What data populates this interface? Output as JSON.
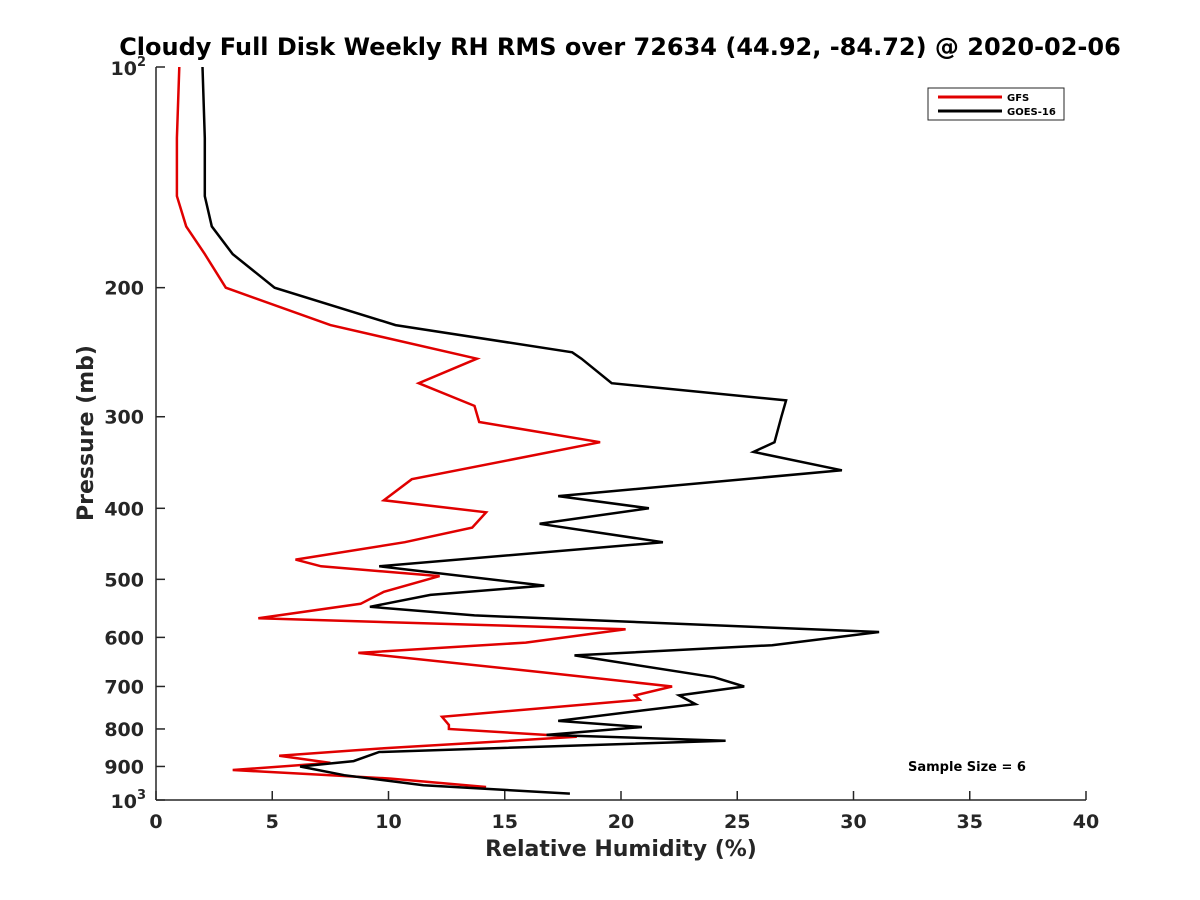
{
  "chart_data": {
    "type": "line",
    "title": "Cloudy Full Disk Weekly RH RMS over 72634 (44.92, -84.72) @ 2020-02-06",
    "xlabel": "Relative Humidity (%)",
    "ylabel": "Pressure (mb)",
    "xlim": [
      0,
      40
    ],
    "ylim": [
      100,
      1000
    ],
    "yscale": "log",
    "y_reversed": true,
    "grid": false,
    "legend_position": "top-right",
    "x_ticks": [
      "0",
      "5",
      "10",
      "15",
      "20",
      "25",
      "30",
      "35",
      "40"
    ],
    "y_ticks": [
      {
        "value": 100,
        "base": "10",
        "exp": "2"
      },
      {
        "value": 200,
        "label": "200"
      },
      {
        "value": 300,
        "label": "300"
      },
      {
        "value": 400,
        "label": "400"
      },
      {
        "value": 500,
        "label": "500"
      },
      {
        "value": 600,
        "label": "600"
      },
      {
        "value": 700,
        "label": "700"
      },
      {
        "value": 800,
        "label": "800"
      },
      {
        "value": 900,
        "label": "900"
      },
      {
        "value": 1000,
        "base": "10",
        "exp": "3"
      }
    ],
    "annotation": "Sample Size = 6",
    "series": [
      {
        "name": "GFS",
        "color": "#e00000",
        "points": [
          [
            1.0,
            100
          ],
          [
            0.9,
            125
          ],
          [
            0.9,
            150
          ],
          [
            1.3,
            165
          ],
          [
            2.1,
            180
          ],
          [
            3.0,
            200
          ],
          [
            7.5,
            225
          ],
          [
            13.8,
            250
          ],
          [
            11.3,
            270
          ],
          [
            13.7,
            290
          ],
          [
            13.9,
            305
          ],
          [
            19.1,
            325
          ],
          [
            11.0,
            365
          ],
          [
            9.8,
            390
          ],
          [
            14.2,
            405
          ],
          [
            13.6,
            425
          ],
          [
            10.7,
            445
          ],
          [
            6.0,
            470
          ],
          [
            7.1,
            480
          ],
          [
            12.2,
            495
          ],
          [
            9.8,
            520
          ],
          [
            8.8,
            540
          ],
          [
            4.4,
            565
          ],
          [
            20.2,
            585
          ],
          [
            15.9,
            610
          ],
          [
            8.7,
            630
          ],
          [
            16.7,
            670
          ],
          [
            22.2,
            700
          ],
          [
            20.6,
            720
          ],
          [
            20.8,
            730
          ],
          [
            12.3,
            770
          ],
          [
            12.6,
            790
          ],
          [
            12.6,
            800
          ],
          [
            18.1,
            820
          ],
          [
            9.8,
            850
          ],
          [
            5.3,
            870
          ],
          [
            7.5,
            890
          ],
          [
            3.3,
            910
          ],
          [
            7.5,
            925
          ],
          [
            10.1,
            935
          ],
          [
            14.2,
            960
          ]
        ]
      },
      {
        "name": "GOES-16",
        "color": "#000000",
        "points": [
          [
            2.0,
            100
          ],
          [
            2.1,
            125
          ],
          [
            2.1,
            150
          ],
          [
            2.4,
            165
          ],
          [
            3.3,
            180
          ],
          [
            5.1,
            200
          ],
          [
            10.3,
            225
          ],
          [
            17.9,
            245
          ],
          [
            18.3,
            250
          ],
          [
            19.6,
            270
          ],
          [
            27.1,
            285
          ],
          [
            26.9,
            300
          ],
          [
            26.6,
            325
          ],
          [
            25.7,
            335
          ],
          [
            29.5,
            355
          ],
          [
            17.3,
            385
          ],
          [
            21.2,
            400
          ],
          [
            16.5,
            420
          ],
          [
            21.8,
            445
          ],
          [
            9.6,
            480
          ],
          [
            16.7,
            510
          ],
          [
            11.8,
            525
          ],
          [
            9.2,
            545
          ],
          [
            13.7,
            560
          ],
          [
            31.1,
            590
          ],
          [
            26.5,
            615
          ],
          [
            18.0,
            635
          ],
          [
            24.0,
            680
          ],
          [
            25.3,
            700
          ],
          [
            22.5,
            720
          ],
          [
            23.2,
            740
          ],
          [
            20.9,
            755
          ],
          [
            17.3,
            780
          ],
          [
            20.9,
            795
          ],
          [
            16.8,
            815
          ],
          [
            24.5,
            830
          ],
          [
            9.6,
            860
          ],
          [
            8.5,
            885
          ],
          [
            6.2,
            900
          ],
          [
            8.1,
            925
          ],
          [
            11.5,
            955
          ],
          [
            17.8,
            980
          ]
        ]
      }
    ]
  }
}
